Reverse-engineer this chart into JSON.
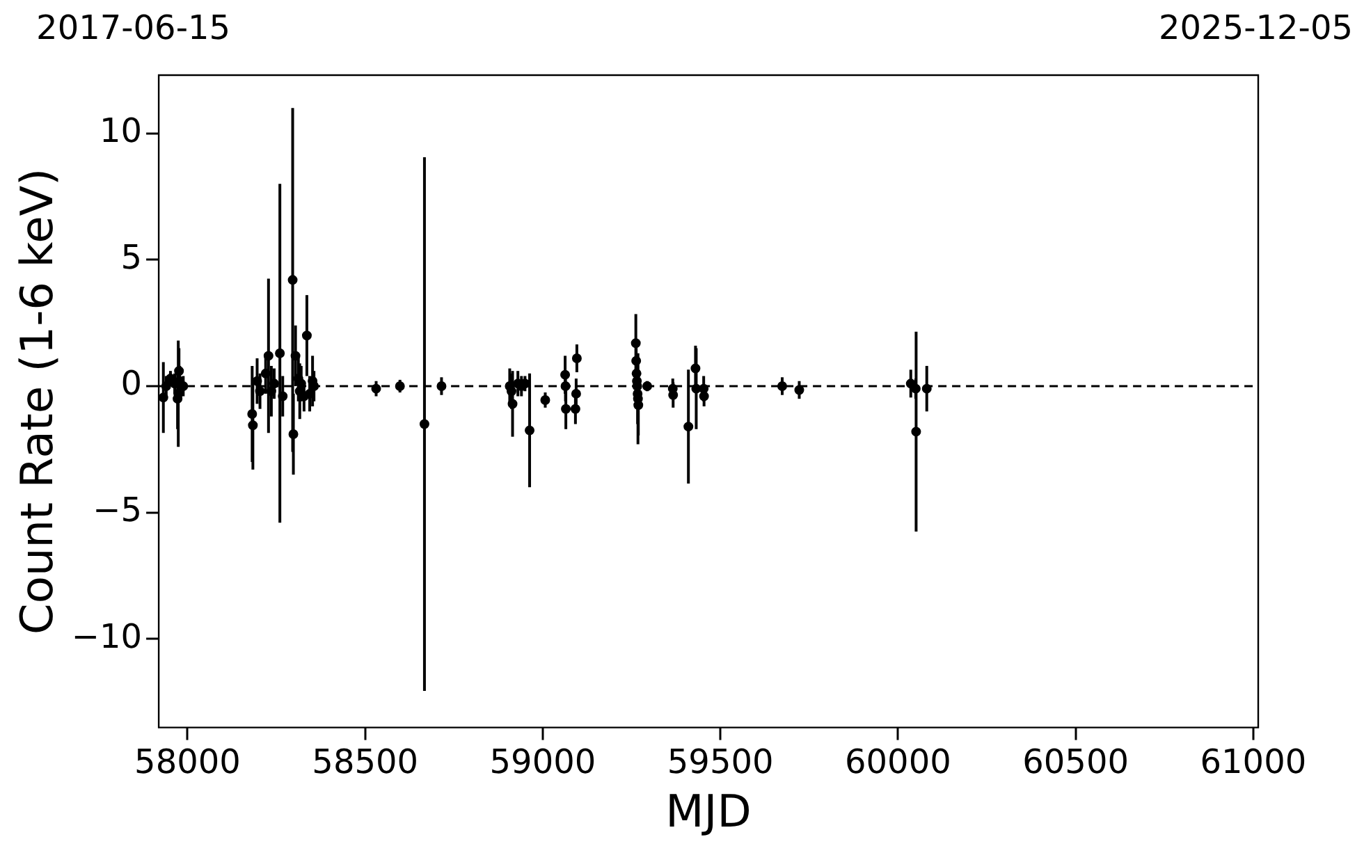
{
  "chart_data": {
    "type": "scatter",
    "xlabel": "MJD",
    "ylabel": "Count Rate (1-6 keV)",
    "x": [
      57932,
      57940,
      57952,
      57964,
      57972,
      57974,
      57976,
      57978,
      57988,
      58182,
      58184,
      58196,
      58204,
      58220,
      58228,
      58236,
      58244,
      58260,
      58268,
      58296,
      58298,
      58304,
      58312,
      58316,
      58320,
      58328,
      58336,
      58344,
      58352,
      58356,
      58531,
      58598,
      58667,
      58715,
      58907,
      58912,
      58915,
      58930,
      58940,
      58950,
      58963,
      59007,
      59063,
      59064,
      59065,
      59092,
      59094,
      59096,
      59262,
      59263,
      59264,
      59265,
      59266,
      59267,
      59268,
      59269,
      59294,
      59366,
      59367,
      59410,
      59430,
      59432,
      59453,
      59454,
      59674,
      59722,
      60036,
      60050,
      60051,
      60081
    ],
    "values": [
      -0.45,
      0.0,
      0.3,
      0.1,
      -0.5,
      -0.3,
      0.6,
      0.2,
      0.0,
      -1.1,
      -1.55,
      0.2,
      -0.2,
      0.5,
      1.2,
      -0.2,
      0.1,
      1.3,
      -0.4,
      4.2,
      -1.9,
      1.2,
      0.3,
      -0.2,
      0.1,
      -0.4,
      2.0,
      -0.3,
      0.2,
      0.0,
      -0.1,
      0.0,
      -1.5,
      0.0,
      0.0,
      -0.2,
      -0.7,
      0.1,
      0.0,
      0.1,
      -1.75,
      -0.55,
      0.45,
      0.0,
      -0.9,
      -0.9,
      -0.3,
      1.1,
      1.7,
      1.0,
      0.5,
      0.2,
      0.0,
      -0.3,
      -0.5,
      -0.75,
      0.0,
      -0.1,
      -0.35,
      -1.6,
      0.7,
      -0.1,
      -0.1,
      -0.4,
      0.0,
      -0.15,
      0.1,
      -0.1,
      -1.8,
      -0.1
    ],
    "errors": [
      1.4,
      0.4,
      0.3,
      0.4,
      1.2,
      2.1,
      0.9,
      0.6,
      0.4,
      1.9,
      1.75,
      0.9,
      0.7,
      0.8,
      3.05,
      1.0,
      0.6,
      6.7,
      0.8,
      6.8,
      1.6,
      1.2,
      0.9,
      1.1,
      0.7,
      0.6,
      1.6,
      0.7,
      1.0,
      0.6,
      0.3,
      0.25,
      10.55,
      0.35,
      0.7,
      0.7,
      1.3,
      0.5,
      0.4,
      0.3,
      2.25,
      0.3,
      0.75,
      0.6,
      0.8,
      0.6,
      0.6,
      0.55,
      1.15,
      0.8,
      0.6,
      0.6,
      0.8,
      1.2,
      1.8,
      1.2,
      0.2,
      0.4,
      0.5,
      2.25,
      0.9,
      1.6,
      0.5,
      0.4,
      0.35,
      0.35,
      0.55,
      0.4,
      3.95,
      0.9
    ],
    "color": "#000000",
    "marker": "circle",
    "xlim": [
      57919,
      61014
    ],
    "xticks": [
      58000,
      58500,
      59000,
      59500,
      60000,
      60500,
      61000
    ],
    "annotations": [
      "2017-06-15",
      "2025-12-05"
    ],
    "ylim": [
      -13.5,
      12.3
    ],
    "yticks": [
      -10,
      -5,
      0,
      5,
      10
    ],
    "ref_lines": [
      {
        "axis": "y",
        "value": 0,
        "color": "#000000",
        "line_style": "dashed"
      }
    ],
    "grid": false,
    "legend": false
  }
}
